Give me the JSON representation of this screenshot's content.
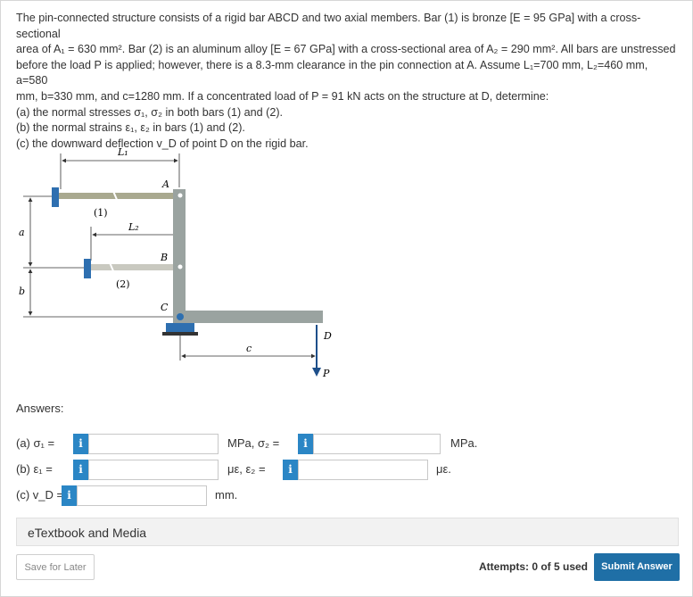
{
  "problem": {
    "line1": "The pin-connected structure consists of a rigid bar ABCD and two axial members. Bar (1) is bronze [E = 95 GPa] with a cross-sectional",
    "line2": "area of A₁ = 630 mm². Bar (2) is an aluminum alloy [E = 67 GPa] with a cross-sectional area of A₂ = 290 mm². All bars are unstressed",
    "line3": "before the load P is applied; however, there is a 8.3-mm clearance in the pin connection at A. Assume L₁=700 mm, L₂=460 mm, a=580",
    "line4": "mm, b=330 mm, and c=1280 mm. If a concentrated load of P = 91 kN acts on the structure at D, determine:",
    "part_a": "(a) the normal stresses σ₁, σ₂ in both bars (1) and (2).",
    "part_b": "(b) the normal strains ε₁, ε₂ in bars (1) and (2).",
    "part_c": "(c) the downward deflection v_D of point D on the rigid bar."
  },
  "diagram": {
    "L1": "L₁",
    "L2": "L₂",
    "A": "A",
    "B": "B",
    "C": "C",
    "D": "D",
    "P": "P",
    "a": "a",
    "b": "b",
    "c": "c",
    "bar1": "(1)",
    "bar2": "(2)"
  },
  "answers": {
    "title": "Answers:",
    "a_label": "(a) σ₁ =",
    "a_unit1": "MPa, σ₂ =",
    "a_unit2": "MPa.",
    "b_label": "(b) ε₁ =",
    "b_unit1": "με, ε₂ =",
    "b_unit2": "με.",
    "c_label": "(c) v_D =",
    "c_unit": "mm.",
    "info_icon": "i"
  },
  "footer": {
    "etextbook": "eTextbook and Media",
    "save": "Save for Later",
    "attempts": "Attempts: 0 of 5 used",
    "submit": "Submit Answer"
  },
  "colors": {
    "accent": "#1f6fa6",
    "info": "#2b86c5"
  }
}
